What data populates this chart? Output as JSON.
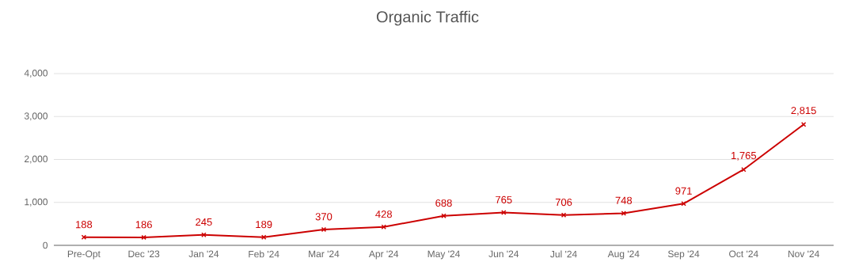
{
  "chart_data": {
    "type": "line",
    "title": "Organic Traffic",
    "categories": [
      "Pre-Opt",
      "Dec '23",
      "Jan '24",
      "Feb '24",
      "Mar '24",
      "Apr '24",
      "May '24",
      "Jun '24",
      "Jul '24",
      "Aug '24",
      "Sep '24",
      "Oct '24",
      "Nov '24"
    ],
    "series": [
      {
        "color": "#cc0000",
        "values": [
          188,
          186,
          245,
          189,
          370,
          428,
          688,
          765,
          706,
          748,
          971,
          1765,
          2815
        ],
        "value_labels": [
          "188",
          "186",
          "245",
          "189",
          "370",
          "428",
          "688",
          "765",
          "706",
          "748",
          "971",
          "1,765",
          "2,815"
        ]
      }
    ],
    "ylim": [
      0,
      4000
    ],
    "yticks": [
      0,
      {
        "value": 1000,
        "label": "1,000"
      },
      {
        "value": 2000,
        "label": "2,000"
      },
      {
        "value": 3000,
        "label": "3,000"
      },
      {
        "value": 4000,
        "label": "4,000"
      }
    ],
    "grid": "y",
    "marker": "cross",
    "line_style": "solid"
  }
}
